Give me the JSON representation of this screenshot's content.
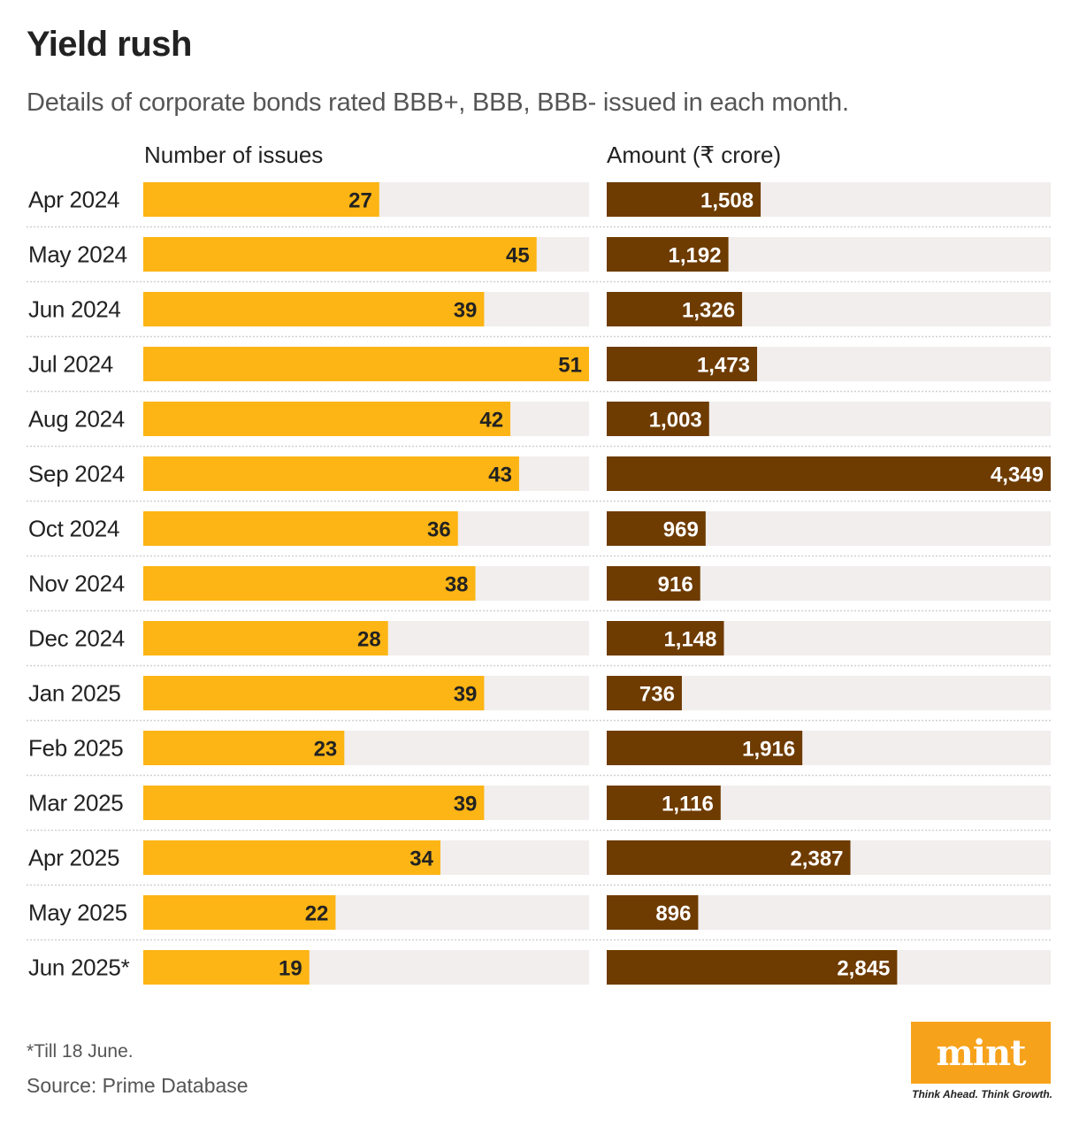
{
  "header": {
    "title": "Yield rush",
    "subtitle": "Details of corporate bonds rated BBB+, BBB, BBB- issued in each month."
  },
  "columns": {
    "left": "Number of issues",
    "right": "Amount (₹ crore)"
  },
  "colors": {
    "issues_bar": "#fdb515",
    "amount_bar": "#6e3b00",
    "track": "#f1eeed",
    "divider": "#d4d0ce",
    "issues_text": "#222222",
    "amount_text": "#ffffff",
    "logo_bg": "#f7a21b"
  },
  "chart_data": {
    "type": "bar",
    "orientation": "horizontal",
    "title": "Yield rush",
    "categories": [
      "Apr 2024",
      "May 2024",
      "Jun 2024",
      "Jul 2024",
      "Aug 2024",
      "Sep 2024",
      "Oct 2024",
      "Nov 2024",
      "Dec 2024",
      "Jan 2025",
      "Feb 2025",
      "Mar 2025",
      "Apr 2025",
      "May 2025",
      "Jun 2025*"
    ],
    "series": [
      {
        "name": "Number of issues",
        "values": [
          27,
          45,
          39,
          51,
          42,
          43,
          36,
          38,
          28,
          39,
          23,
          39,
          34,
          22,
          19
        ],
        "labels": [
          "27",
          "45",
          "39",
          "51",
          "42",
          "43",
          "36",
          "38",
          "28",
          "39",
          "23",
          "39",
          "34",
          "22",
          "19"
        ],
        "xlim": [
          0,
          51
        ]
      },
      {
        "name": "Amount (₹ crore)",
        "values": [
          1508,
          1192,
          1326,
          1473,
          1003,
          4349,
          969,
          916,
          1148,
          736,
          1916,
          1116,
          2387,
          896,
          2845
        ],
        "labels": [
          "1,508",
          "1,192",
          "1,326",
          "1,473",
          "1,003",
          "4,349",
          "969",
          "916",
          "1,148",
          "736",
          "1,916",
          "1,116",
          "2,387",
          "896",
          "2,845"
        ],
        "xlim": [
          0,
          4349
        ]
      }
    ]
  },
  "footer": {
    "footnote": "*Till 18 June.",
    "source": "Source: Prime Database",
    "logo": "mint",
    "tagline": "Think Ahead. Think Growth."
  }
}
